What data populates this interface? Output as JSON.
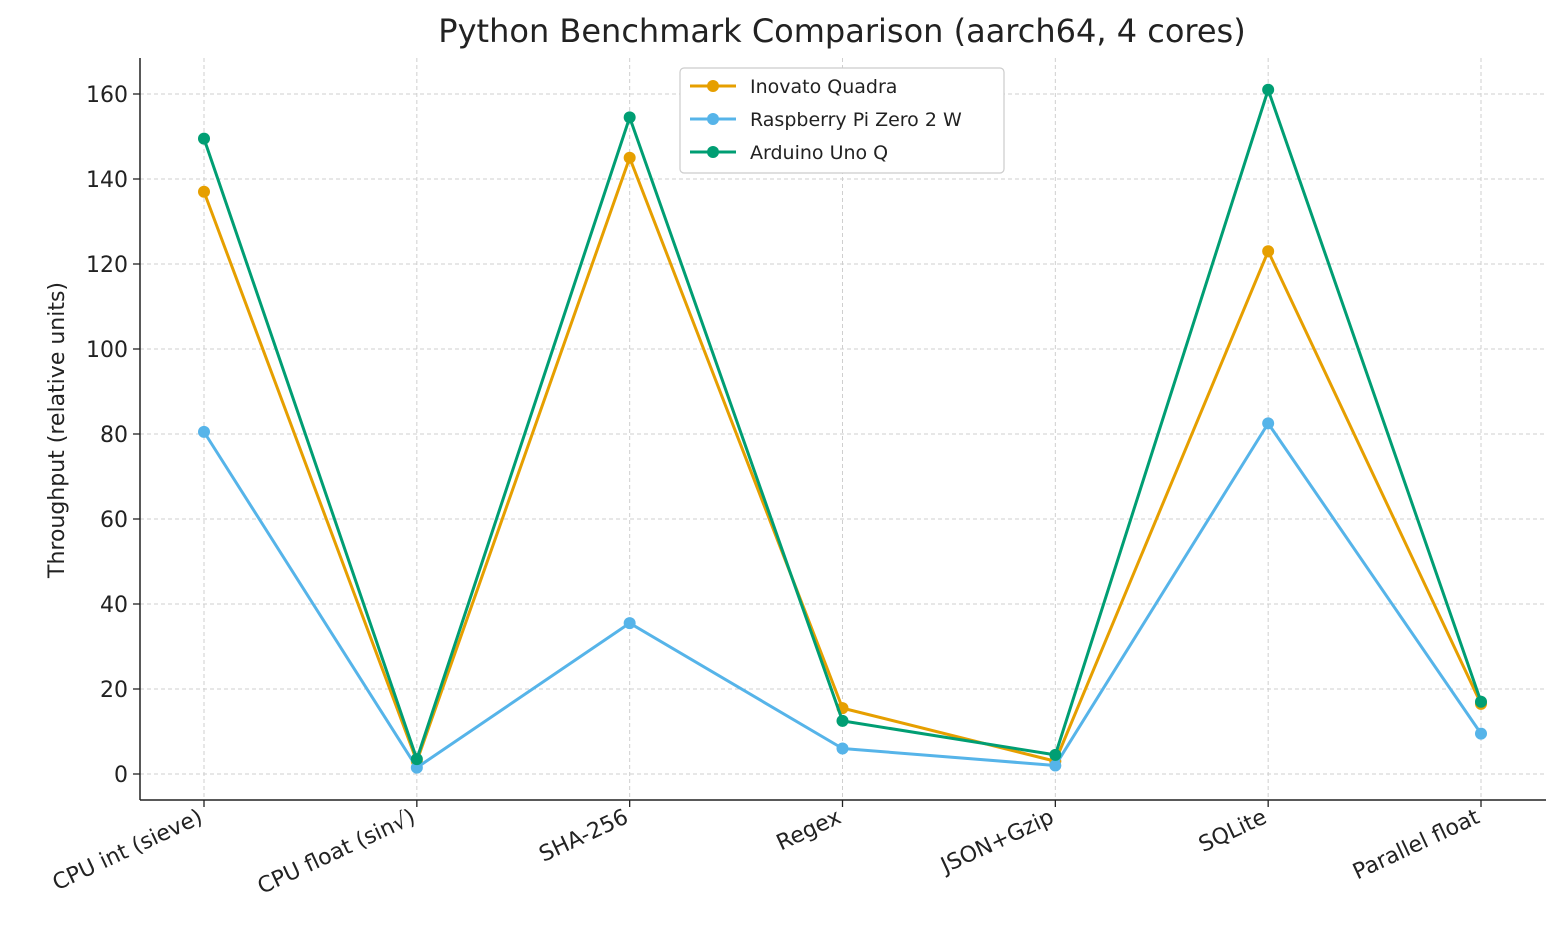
{
  "chart_data": {
    "type": "line",
    "title": "Python Benchmark Comparison (aarch64, 4 cores)",
    "xlabel": "",
    "ylabel": "Throughput (relative units)",
    "ylim": [
      -6,
      167
    ],
    "yticks": [
      0,
      20,
      40,
      60,
      80,
      100,
      120,
      140,
      160
    ],
    "grid": true,
    "legend_position": "top-center",
    "categories": [
      "CPU int (sieve)",
      "CPU float (sin√)",
      "SHA-256",
      "Regex",
      "JSON+Gzip",
      "SQLite",
      "Parallel float"
    ],
    "series": [
      {
        "name": "Inovato Quadra",
        "color": "#E69F00",
        "values": [
          137,
          3,
          145,
          15.5,
          3,
          123,
          16.5
        ]
      },
      {
        "name": "Raspberry Pi Zero 2 W",
        "color": "#56B4E9",
        "values": [
          80.5,
          1.5,
          35.5,
          6,
          2,
          82.5,
          9.5
        ]
      },
      {
        "name": "Arduino Uno Q",
        "color": "#009E73",
        "values": [
          149.5,
          3.5,
          154.5,
          12.5,
          4.5,
          161,
          17
        ]
      }
    ]
  }
}
